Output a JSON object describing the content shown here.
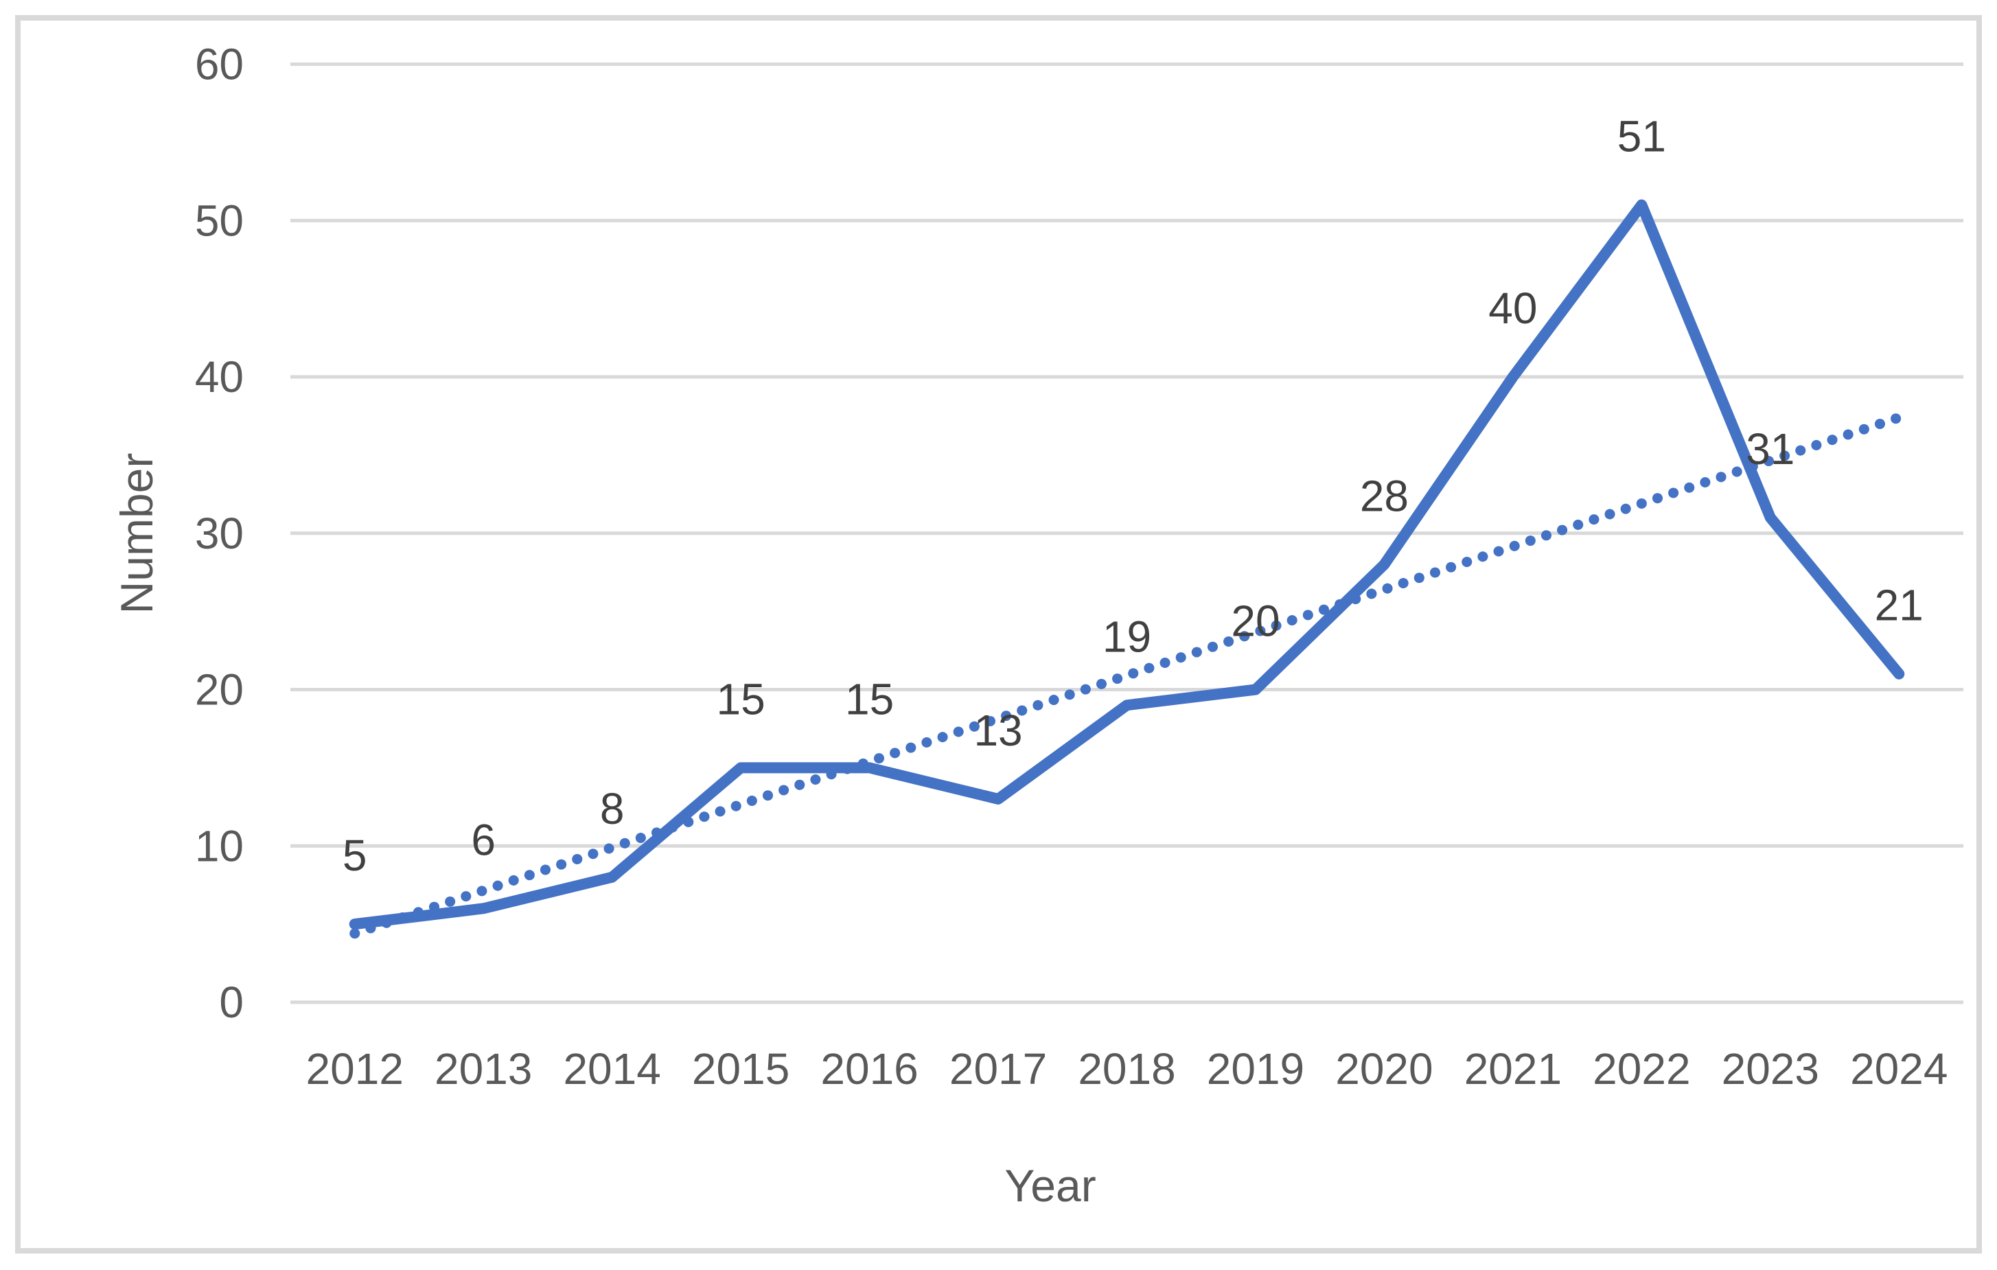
{
  "figure": {
    "background": "#ffffff",
    "border_color": "#d9d9d9"
  },
  "chart_data": {
    "type": "line",
    "title": "",
    "categories": [
      "2012",
      "2013",
      "2014",
      "2015",
      "2016",
      "2017",
      "2018",
      "2019",
      "2020",
      "2021",
      "2022",
      "2023",
      "2024"
    ],
    "series": [
      {
        "name": "Number",
        "color": "#4472C4",
        "values": [
          5,
          6,
          8,
          15,
          15,
          13,
          19,
          20,
          28,
          40,
          51,
          31,
          21
        ]
      }
    ],
    "trendline": {
      "type": "linear",
      "style": "dotted",
      "color": "#4472C4",
      "start_value": 4.4,
      "end_value": 37.4
    },
    "data_labels": [
      "5",
      "6",
      "8",
      "15",
      "15",
      "13",
      "19",
      "20",
      "28",
      "40",
      "51",
      "31",
      "21"
    ],
    "xlabel": "Year",
    "ylabel": "Number",
    "ylim": [
      0,
      60
    ],
    "ytick_step": 10,
    "yticks": [
      "0",
      "10",
      "20",
      "30",
      "40",
      "50",
      "60"
    ],
    "grid": true,
    "legend_position": "none",
    "colors": {
      "grid": "#d9d9d9",
      "tick_text": "#595959",
      "data_label_text": "#404040"
    }
  }
}
